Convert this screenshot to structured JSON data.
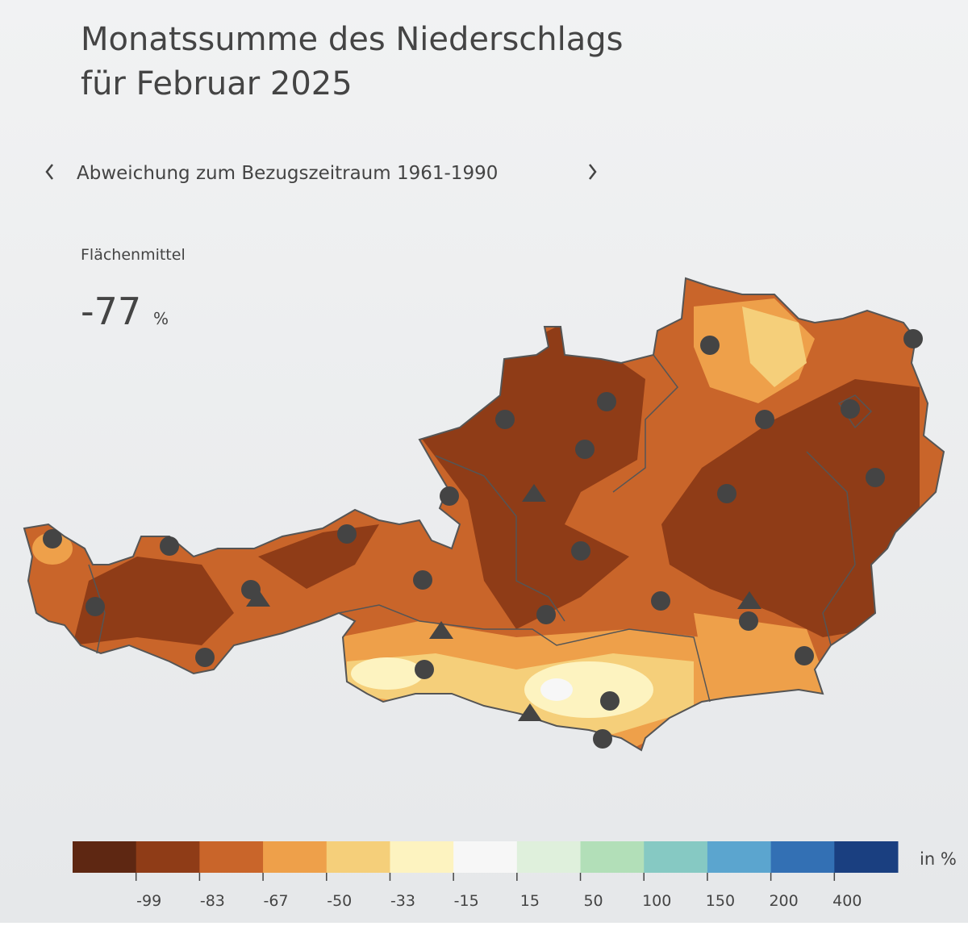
{
  "title": [
    "Monatssumme des Niederschlags",
    "für Februar 2025"
  ],
  "nav": {
    "label": "Abweichung zum Bezugszeitraum 1961-1990"
  },
  "area_mean": {
    "label": "Flächenmittel",
    "value": -77,
    "unit": "%"
  },
  "legend": {
    "colors": [
      "#5e2712",
      "#8f3c17",
      "#c9652a",
      "#eea04a",
      "#f5cf7a",
      "#fdf3c0",
      "#f7f7f7",
      "#dff0dc",
      "#b2dfb8",
      "#86c9c3",
      "#5ba5cf",
      "#3370b4",
      "#1a3f80"
    ],
    "ticks": [
      -99,
      -83,
      -67,
      -50,
      -33,
      -15,
      15,
      50,
      100,
      150,
      200,
      400
    ],
    "unit": "in %"
  }
}
